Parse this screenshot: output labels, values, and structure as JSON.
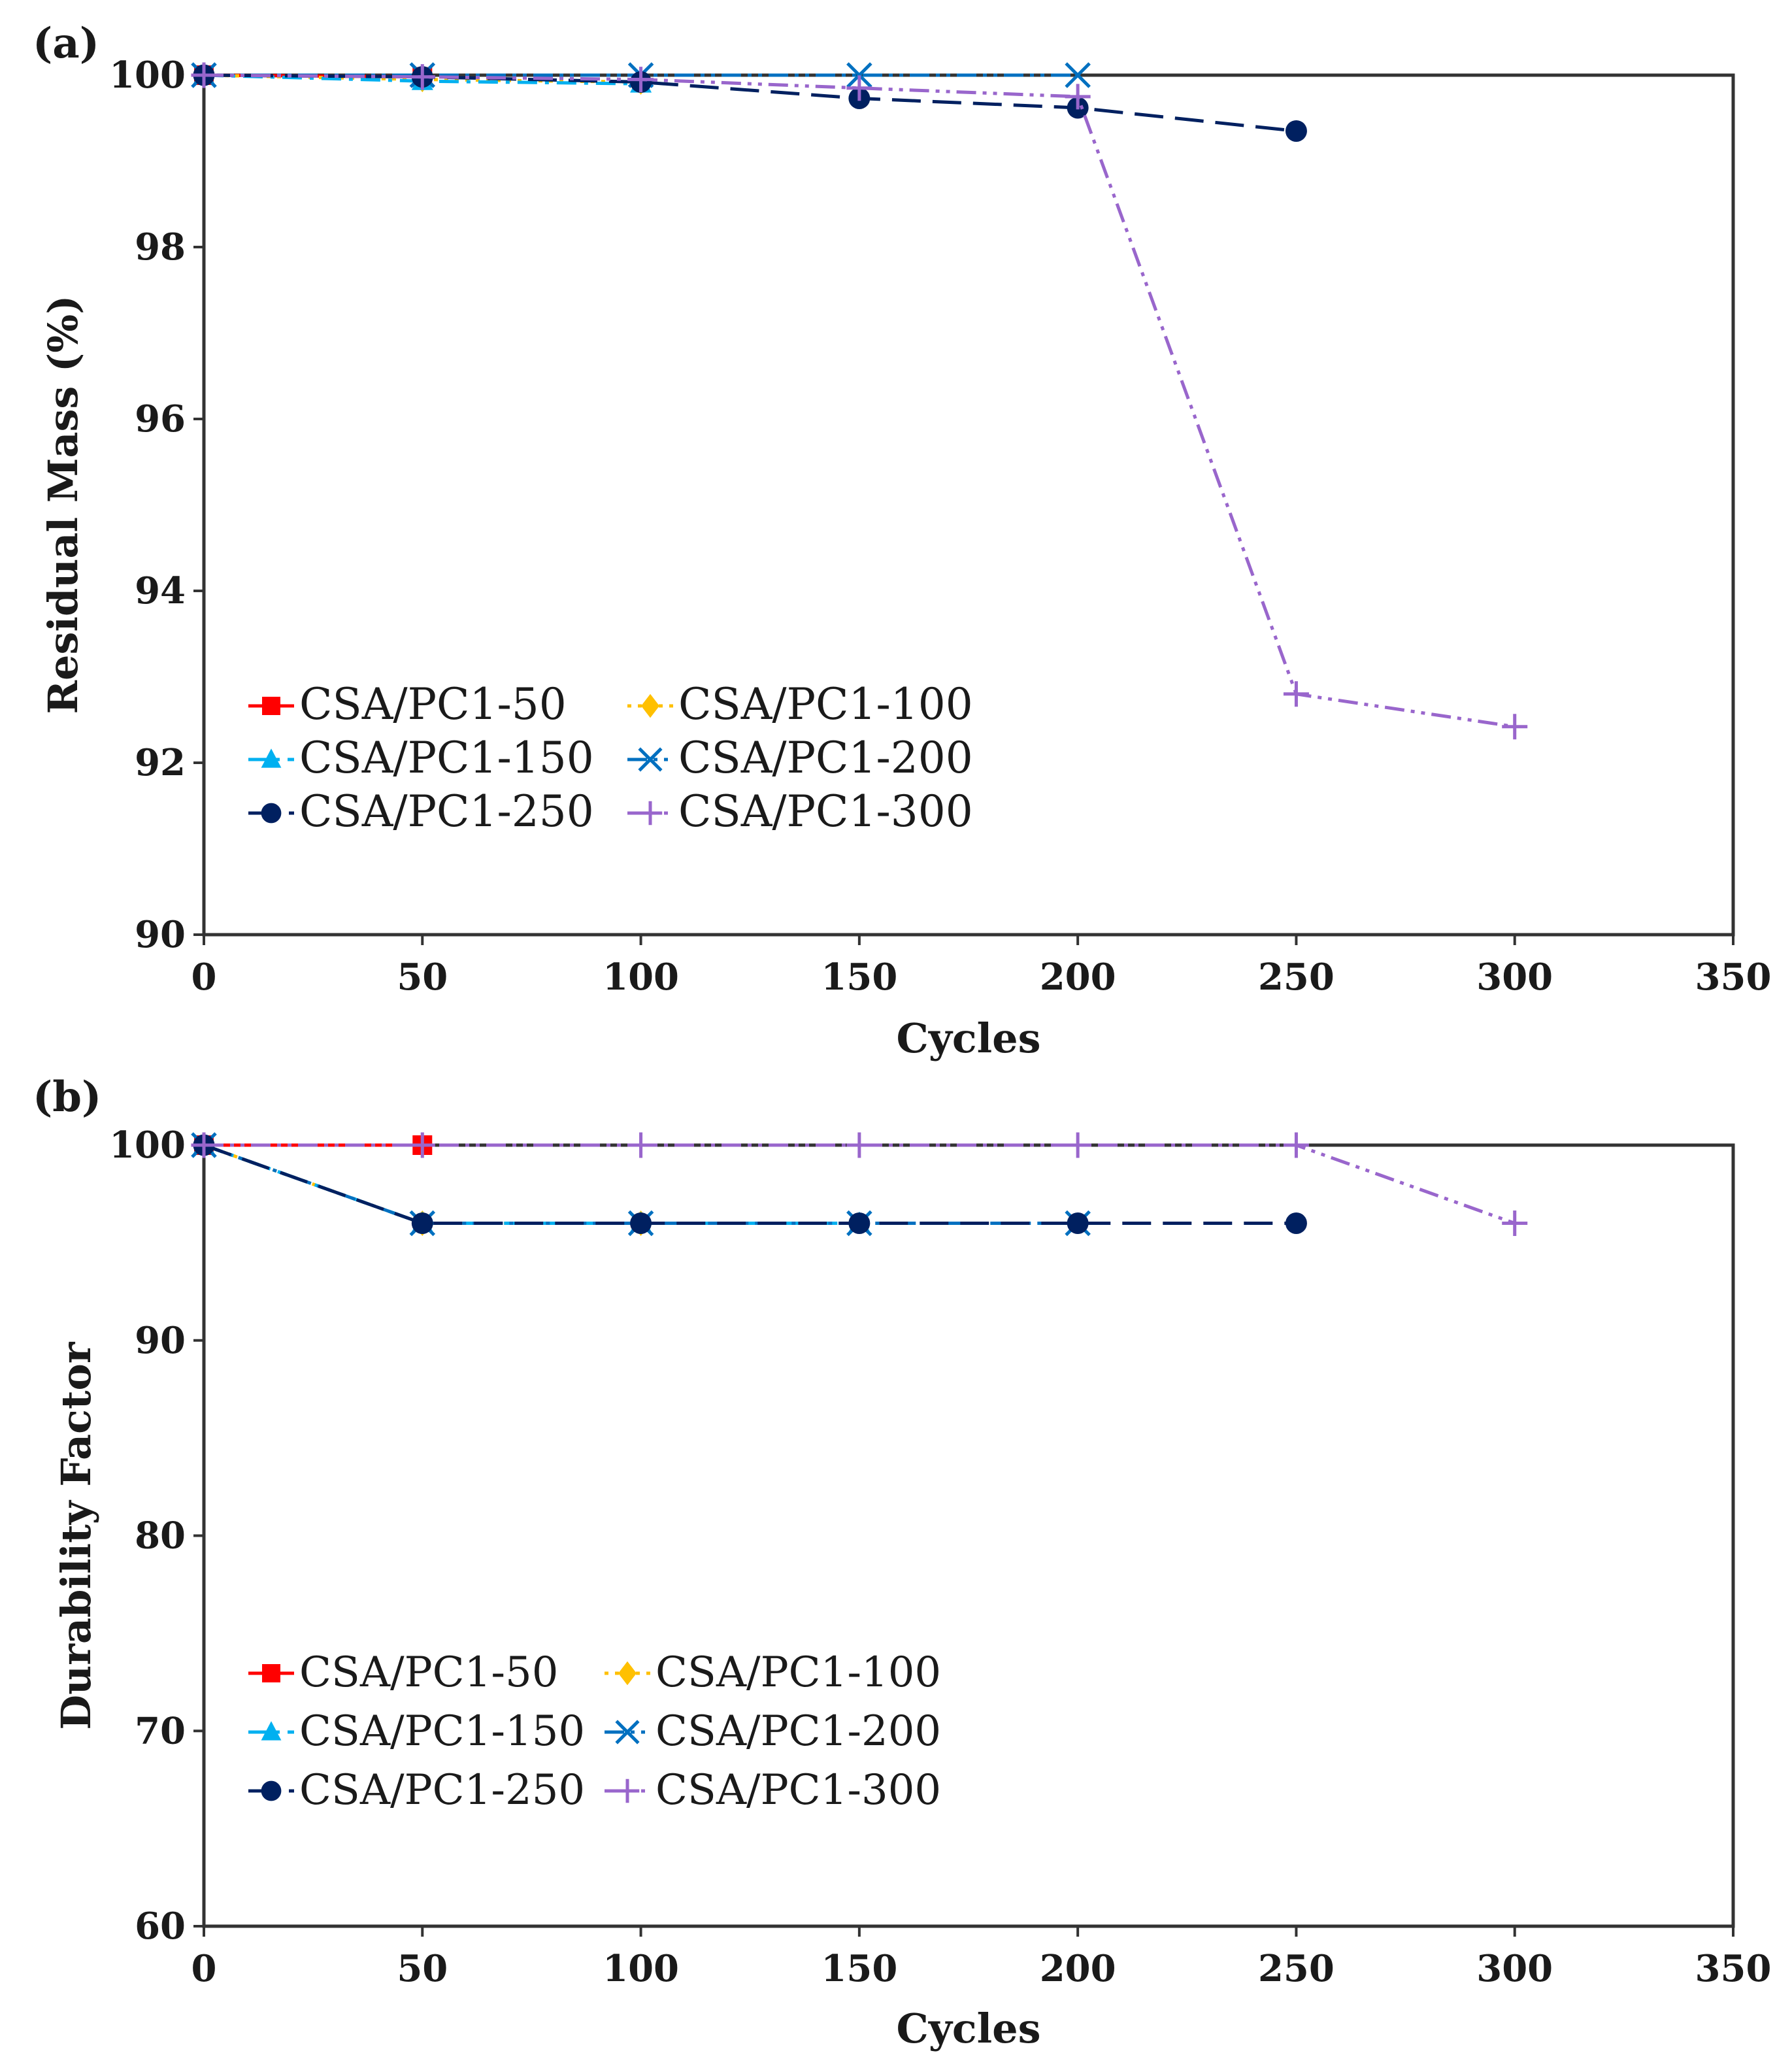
{
  "chart_data": [
    {
      "type": "line",
      "panel_label": "(a)",
      "xlabel": "Cycles",
      "ylabel": "Residual Mass (%)",
      "xlim": [
        0,
        350
      ],
      "ylim": [
        90,
        100
      ],
      "x_ticks": [
        "0",
        "50",
        "100",
        "150",
        "200",
        "250",
        "300",
        "350"
      ],
      "y_ticks": [
        "90",
        "92",
        "94",
        "96",
        "98",
        "100"
      ],
      "grid": false,
      "legend_position": "lower-left",
      "series": [
        {
          "name": "CSA/PC1-50",
          "color": "#ff0000",
          "marker": "square",
          "dash": "solid",
          "x": [
            0,
            50
          ],
          "y": [
            100,
            99.98
          ]
        },
        {
          "name": "CSA/PC1-100",
          "color": "#ffc000",
          "marker": "diamond",
          "dash": "dot",
          "x": [
            0,
            50,
            100
          ],
          "y": [
            100,
            99.95,
            99.92
          ]
        },
        {
          "name": "CSA/PC1-150",
          "color": "#00b0f0",
          "marker": "triangle",
          "dash": "dashdot",
          "x": [
            0,
            50,
            100
          ],
          "y": [
            100,
            99.93,
            99.9
          ]
        },
        {
          "name": "CSA/PC1-200",
          "color": "#0070c0",
          "marker": "x",
          "dash": "dashdotdot",
          "x": [
            0,
            50,
            100,
            150,
            200
          ],
          "y": [
            100,
            100,
            100,
            100,
            100
          ]
        },
        {
          "name": "CSA/PC1-250",
          "color": "#002060",
          "marker": "circle",
          "dash": "longdash",
          "x": [
            0,
            50,
            100,
            150,
            200,
            250
          ],
          "y": [
            100,
            99.98,
            99.92,
            99.73,
            99.62,
            99.35
          ]
        },
        {
          "name": "CSA/PC1-300",
          "color": "#9966cc",
          "marker": "plus",
          "dash": "dashdotdot",
          "x": [
            0,
            50,
            100,
            150,
            200,
            250,
            300
          ],
          "y": [
            100,
            99.98,
            99.95,
            99.85,
            99.75,
            92.8,
            92.42
          ]
        }
      ]
    },
    {
      "type": "line",
      "panel_label": "(b)",
      "xlabel": "Cycles",
      "ylabel": "Durability Factor",
      "xlim": [
        0,
        350
      ],
      "ylim": [
        60,
        100
      ],
      "x_ticks": [
        "0",
        "50",
        "100",
        "150",
        "200",
        "250",
        "300",
        "350"
      ],
      "y_ticks": [
        "60",
        "70",
        "80",
        "90",
        "100"
      ],
      "grid": false,
      "legend_position": "lower-left",
      "series": [
        {
          "name": "CSA/PC1-50",
          "color": "#ff0000",
          "marker": "square",
          "dash": "solid",
          "x": [
            0,
            50
          ],
          "y": [
            100,
            100
          ]
        },
        {
          "name": "CSA/PC1-100",
          "color": "#ffc000",
          "marker": "diamond",
          "dash": "dot",
          "x": [
            0,
            50,
            100
          ],
          "y": [
            100,
            96,
            96
          ]
        },
        {
          "name": "CSA/PC1-150",
          "color": "#00b0f0",
          "marker": "triangle",
          "dash": "dashdot",
          "x": [
            0,
            50,
            100,
            150
          ],
          "y": [
            100,
            96,
            96,
            96
          ]
        },
        {
          "name": "CSA/PC1-200",
          "color": "#0070c0",
          "marker": "x",
          "dash": "dashdotdot",
          "x": [
            0,
            50,
            100,
            150,
            200
          ],
          "y": [
            100,
            96,
            96,
            96,
            96
          ]
        },
        {
          "name": "CSA/PC1-250",
          "color": "#002060",
          "marker": "circle",
          "dash": "longdash",
          "x": [
            0,
            50,
            100,
            150,
            200,
            250
          ],
          "y": [
            100,
            96,
            96,
            96,
            96,
            96
          ]
        },
        {
          "name": "CSA/PC1-300",
          "color": "#9966cc",
          "marker": "plus",
          "dash": "dashdotdot",
          "x": [
            0,
            50,
            100,
            150,
            200,
            250,
            300
          ],
          "y": [
            100,
            100,
            100,
            100,
            100,
            100,
            96
          ]
        }
      ]
    }
  ]
}
